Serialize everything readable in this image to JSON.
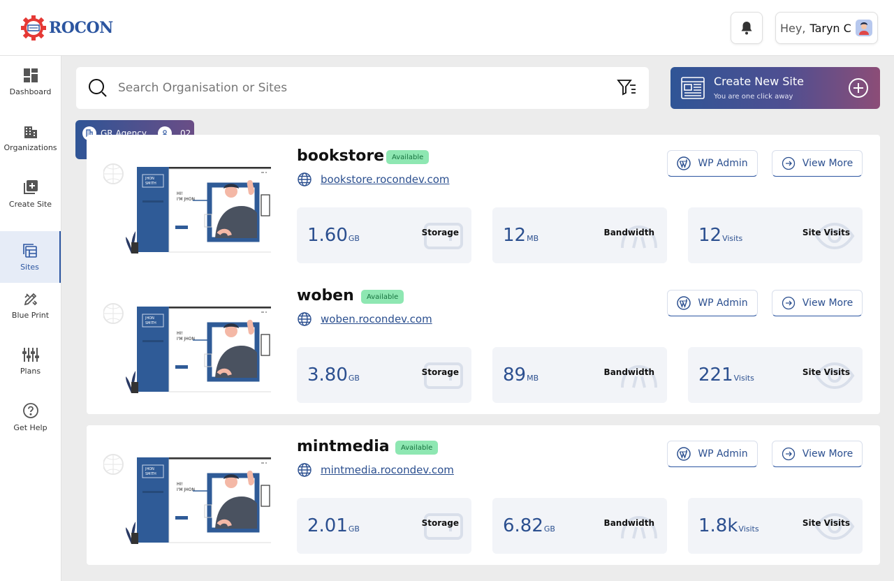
{
  "app": {
    "logo_text": "ROCON"
  },
  "header": {
    "greeting": "Hey,",
    "user_name": "Taryn C"
  },
  "sidebar": {
    "items": [
      {
        "label": "Dashboard",
        "icon": "dashboard-icon"
      },
      {
        "label": "Organizations",
        "icon": "building-icon"
      },
      {
        "label": "Create Site",
        "icon": "add-box-icon"
      },
      {
        "label": "Sites",
        "icon": "sites-icon",
        "active": true
      },
      {
        "label": "Blue Print",
        "icon": "blueprint-icon"
      },
      {
        "label": "Plans",
        "icon": "plans-icon"
      },
      {
        "label": "Get Help",
        "icon": "help-icon"
      }
    ]
  },
  "search": {
    "placeholder": "Search Organisation or Sites"
  },
  "create_site": {
    "title": "Create New Site",
    "subtitle": "You are one click away"
  },
  "organization": {
    "name": "GR Agency",
    "count": "02"
  },
  "buttons": {
    "wp_admin": "WP Admin",
    "view_more": "View More"
  },
  "stat_labels": {
    "storage": "Storage",
    "bandwidth": "Bandwidth",
    "visits": "Site Visits"
  },
  "sites": [
    {
      "name": "bookstore",
      "status": "Available",
      "url": "bookstore.rocondev.com",
      "storage": {
        "value": "1.60",
        "unit": "GB"
      },
      "bandwidth": {
        "value": "12",
        "unit": "MB"
      },
      "visits": {
        "value": "12",
        "unit": "Visits"
      }
    },
    {
      "name": "woben",
      "status": "Available",
      "url": "woben.rocondev.com",
      "storage": {
        "value": "3.80",
        "unit": "GB"
      },
      "bandwidth": {
        "value": "89",
        "unit": "MB"
      },
      "visits": {
        "value": "221",
        "unit": "Visits"
      }
    },
    {
      "name": "mintmedia",
      "status": "Available",
      "url": "mintmedia.rocondev.com",
      "storage": {
        "value": "2.01",
        "unit": "GB"
      },
      "bandwidth": {
        "value": "6.82",
        "unit": "GB"
      },
      "visits": {
        "value": "1.8k",
        "unit": "Visits"
      }
    }
  ],
  "thumbnail": {
    "line1": "HI!",
    "line2": "I'M JHON",
    "name_top": "JHON",
    "name_bottom": "SMITH"
  },
  "colors": {
    "primary": "#2b55a0",
    "badge": "#8ee7b2",
    "accent_red": "#e53935"
  }
}
